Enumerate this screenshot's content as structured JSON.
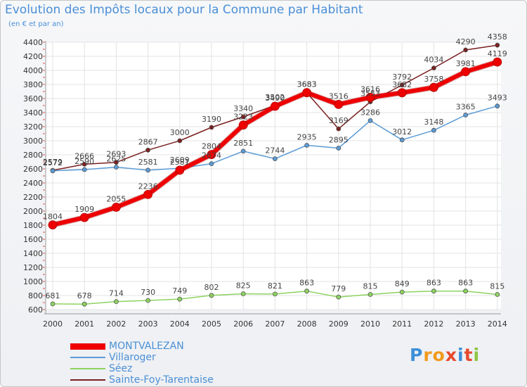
{
  "header": {
    "title": "Evolution des Impôts locaux pour la Commune par Habitant",
    "subtitle": "(en € et par an)"
  },
  "logo": {
    "text": "Proxiti",
    "letters": [
      {
        "ch": "P",
        "color": "#3d8fd8"
      },
      {
        "ch": "r",
        "color": "#f29a1d"
      },
      {
        "ch": "o",
        "color": "#f29a1d"
      },
      {
        "ch": "x",
        "color": "#e64a2e"
      },
      {
        "ch": "i",
        "color": "#3d8fd8"
      },
      {
        "ch": "t",
        "color": "#e64a2e"
      },
      {
        "ch": "i",
        "color": "#8cc63f"
      }
    ]
  },
  "chart_data": {
    "type": "line",
    "title": "Evolution des Impôts locaux pour la Commune par Habitant",
    "subtitle": "(en € et par an)",
    "x": [
      "2000",
      "2001",
      "2002",
      "2003",
      "2004",
      "2005",
      "2006",
      "2007",
      "2008",
      "2009",
      "2010",
      "2011",
      "2012",
      "2013",
      "2014"
    ],
    "ylim": [
      600,
      4400
    ],
    "yticks": [
      600,
      800,
      1000,
      1200,
      1400,
      1600,
      1800,
      2000,
      2200,
      2400,
      2600,
      2800,
      3000,
      3200,
      3400,
      3600,
      3800,
      4000,
      4200,
      4400
    ],
    "grid": true,
    "legend_position": "bottom-left",
    "series": [
      {
        "name": "Sainte-Foy-Tarentaise",
        "color": "#7a1f1f",
        "width": 1.5,
        "marker": 3,
        "values": [
          2579,
          2666,
          2693,
          2867,
          3000,
          3190,
          3340,
          3502,
          3683,
          3169,
          3553,
          3792,
          4034,
          4290,
          4358
        ]
      },
      {
        "name": "Villaroger",
        "color": "#5b9bd5",
        "width": 1.5,
        "marker": 3,
        "values": [
          2572,
          2590,
          2625,
          2581,
          2609,
          2674,
          2851,
          2744,
          2935,
          2895,
          3286,
          3012,
          3148,
          3365,
          3493
        ]
      },
      {
        "name": "Séez",
        "color": "#8dd35f",
        "width": 1.5,
        "marker": 3,
        "values": [
          681,
          678,
          714,
          730,
          749,
          802,
          825,
          821,
          863,
          779,
          815,
          849,
          863,
          863,
          815
        ]
      },
      {
        "name": "MONTVALEZAN",
        "color": "#ee0000",
        "width": 6,
        "marker": 6,
        "values": [
          1804,
          1909,
          2055,
          2236,
          2581,
          2804,
          3223,
          3490,
          3683,
          3516,
          3616,
          3682,
          3758,
          3981,
          4119
        ]
      }
    ]
  }
}
